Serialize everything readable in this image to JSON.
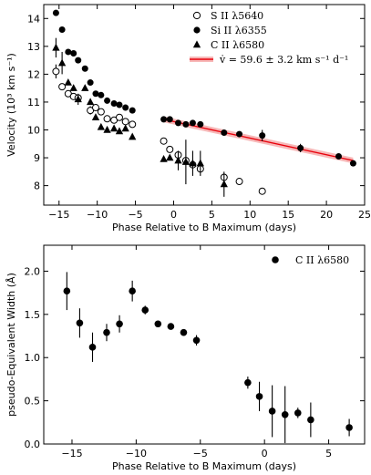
{
  "chart_data": [
    {
      "type": "scatter",
      "xlabel": "Phase Relative to B Maximum (days)",
      "ylabel": "Velocity (10³ km s⁻¹)",
      "xlim": [
        -17,
        25
      ],
      "ylim": [
        7.3,
        14.5
      ],
      "xticks": [
        -15,
        -10,
        -5,
        0,
        5,
        10,
        15,
        20,
        25
      ],
      "yticks": [
        8,
        9,
        10,
        11,
        12,
        13,
        14
      ],
      "legend_position": "top-right",
      "series": [
        {
          "name": "S II λ5640",
          "marker": "open-circle",
          "points": [
            {
              "x": -15.4,
              "y": 12.1,
              "err": 0.25
            },
            {
              "x": -14.6,
              "y": 11.55
            },
            {
              "x": -13.8,
              "y": 11.3
            },
            {
              "x": -13.1,
              "y": 11.2
            },
            {
              "x": -12.5,
              "y": 11.15
            },
            {
              "x": -10.9,
              "y": 10.7,
              "err": 0.15
            },
            {
              "x": -10.2,
              "y": 10.8
            },
            {
              "x": -9.5,
              "y": 10.65
            },
            {
              "x": -8.7,
              "y": 10.4
            },
            {
              "x": -7.8,
              "y": 10.35
            },
            {
              "x": -7.1,
              "y": 10.45
            },
            {
              "x": -6.3,
              "y": 10.3
            },
            {
              "x": -5.4,
              "y": 10.2
            },
            {
              "x": -1.3,
              "y": 9.6
            },
            {
              "x": -0.5,
              "y": 9.3
            },
            {
              "x": 0.6,
              "y": 9.1
            },
            {
              "x": 1.6,
              "y": 8.9
            },
            {
              "x": 2.5,
              "y": 8.75
            },
            {
              "x": 3.5,
              "y": 8.6
            },
            {
              "x": 6.6,
              "y": 8.3
            },
            {
              "x": 8.6,
              "y": 8.15
            },
            {
              "x": 11.6,
              "y": 7.8
            }
          ]
        },
        {
          "name": "Si II λ6355",
          "marker": "filled-circle",
          "points": [
            {
              "x": -15.4,
              "y": 14.2
            },
            {
              "x": -14.6,
              "y": 13.6
            },
            {
              "x": -13.8,
              "y": 12.8
            },
            {
              "x": -13.1,
              "y": 12.75
            },
            {
              "x": -12.5,
              "y": 12.5
            },
            {
              "x": -11.6,
              "y": 12.2
            },
            {
              "x": -10.9,
              "y": 11.7
            },
            {
              "x": -10.2,
              "y": 11.3
            },
            {
              "x": -9.5,
              "y": 11.25
            },
            {
              "x": -8.7,
              "y": 11.05
            },
            {
              "x": -7.8,
              "y": 10.95
            },
            {
              "x": -7.1,
              "y": 10.9
            },
            {
              "x": -6.3,
              "y": 10.8
            },
            {
              "x": -5.4,
              "y": 10.7
            },
            {
              "x": -1.3,
              "y": 10.38
            },
            {
              "x": -0.5,
              "y": 10.38
            },
            {
              "x": 0.6,
              "y": 10.25
            },
            {
              "x": 1.6,
              "y": 10.2
            },
            {
              "x": 2.5,
              "y": 10.25
            },
            {
              "x": 3.5,
              "y": 10.2
            },
            {
              "x": 6.6,
              "y": 9.9
            },
            {
              "x": 8.6,
              "y": 9.85
            },
            {
              "x": 11.6,
              "y": 9.8,
              "err": 0.2
            },
            {
              "x": 16.6,
              "y": 9.35,
              "err": 0.15
            },
            {
              "x": 21.6,
              "y": 9.05
            },
            {
              "x": 23.5,
              "y": 8.8
            }
          ]
        },
        {
          "name": "C II λ6580",
          "marker": "filled-triangle",
          "points": [
            {
              "x": -15.4,
              "y": 12.95,
              "err": 0.35
            },
            {
              "x": -14.6,
              "y": 12.4,
              "err": 0.4
            },
            {
              "x": -13.8,
              "y": 11.7
            },
            {
              "x": -13.1,
              "y": 11.5
            },
            {
              "x": -12.5,
              "y": 11.1,
              "err": 0.2
            },
            {
              "x": -11.6,
              "y": 11.5
            },
            {
              "x": -10.9,
              "y": 11.0
            },
            {
              "x": -10.2,
              "y": 10.45
            },
            {
              "x": -9.5,
              "y": 10.1
            },
            {
              "x": -8.7,
              "y": 10.0
            },
            {
              "x": -7.8,
              "y": 10.05
            },
            {
              "x": -7.1,
              "y": 9.95
            },
            {
              "x": -6.3,
              "y": 10.05
            },
            {
              "x": -5.4,
              "y": 9.75
            },
            {
              "x": -1.3,
              "y": 8.95
            },
            {
              "x": -0.5,
              "y": 9.0
            },
            {
              "x": 0.6,
              "y": 8.9,
              "err": 0.35
            },
            {
              "x": 1.6,
              "y": 8.85,
              "err": 0.8
            },
            {
              "x": 2.5,
              "y": 8.8,
              "err": 0.45
            },
            {
              "x": 3.5,
              "y": 8.8,
              "err": 0.45
            },
            {
              "x": 6.6,
              "y": 8.05,
              "err": 0.45
            }
          ]
        }
      ],
      "fit_line": {
        "label": "v̇ = 59.6 ± 3.2 km s⁻¹ d⁻¹",
        "color": "#e8000b",
        "band_color": "#f4a0a0",
        "x": [
          -1.3,
          23.5
        ],
        "y": [
          10.38,
          8.9
        ]
      }
    },
    {
      "type": "scatter",
      "xlabel": "Phase Relative to B Maximum (days)",
      "ylabel": "pseudo-Equivalent Width (Å)",
      "xlim": [
        -17.2,
        7.8
      ],
      "ylim": [
        0.0,
        2.3
      ],
      "xticks": [
        -15,
        -10,
        -5,
        0,
        5
      ],
      "yticks": [
        0.0,
        0.5,
        1.0,
        1.5,
        2.0
      ],
      "legend_position": "top-right",
      "series": [
        {
          "name": "C II λ6580",
          "marker": "filled-circle",
          "points": [
            {
              "x": -15.4,
              "y": 1.77,
              "err": 0.22
            },
            {
              "x": -14.4,
              "y": 1.4,
              "err": 0.17
            },
            {
              "x": -13.4,
              "y": 1.12,
              "err": 0.17
            },
            {
              "x": -12.3,
              "y": 1.29,
              "err": 0.1
            },
            {
              "x": -11.3,
              "y": 1.39,
              "err": 0.1
            },
            {
              "x": -10.3,
              "y": 1.77,
              "err": 0.12
            },
            {
              "x": -9.3,
              "y": 1.55,
              "err": 0.05
            },
            {
              "x": -8.3,
              "y": 1.39
            },
            {
              "x": -7.3,
              "y": 1.36
            },
            {
              "x": -6.3,
              "y": 1.29
            },
            {
              "x": -5.3,
              "y": 1.2,
              "err": 0.06
            },
            {
              "x": -1.3,
              "y": 0.71,
              "err": 0.07
            },
            {
              "x": -0.4,
              "y": 0.55,
              "err": 0.17
            },
            {
              "x": 0.6,
              "y": 0.38,
              "err": 0.3
            },
            {
              "x": 1.6,
              "y": 0.34,
              "err": 0.33
            },
            {
              "x": 2.6,
              "y": 0.36,
              "err": 0.06
            },
            {
              "x": 3.6,
              "y": 0.28,
              "err": 0.2
            },
            {
              "x": 6.6,
              "y": 0.19,
              "err": 0.1
            }
          ]
        }
      ]
    }
  ]
}
